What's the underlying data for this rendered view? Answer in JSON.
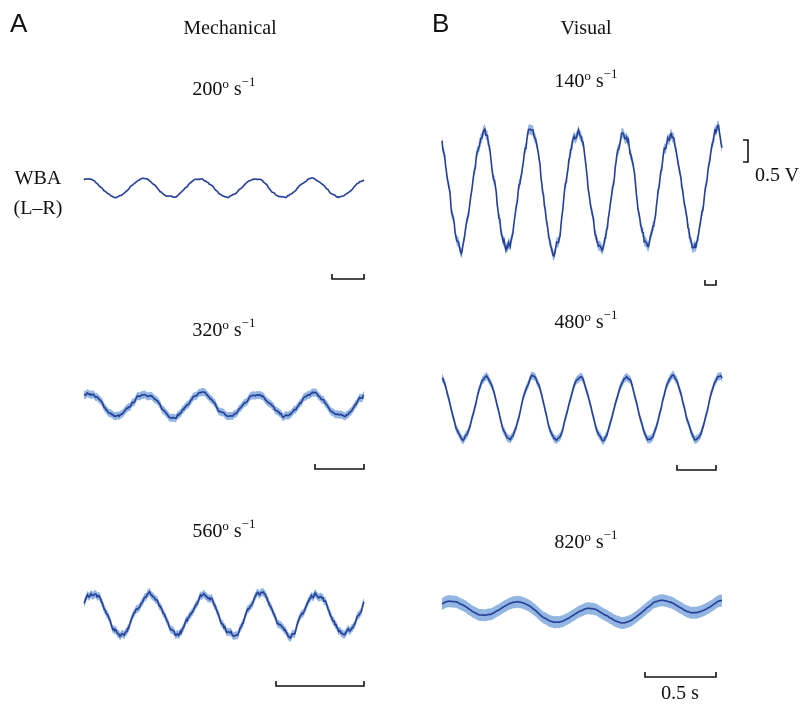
{
  "colors": {
    "trace": "#253f96",
    "band": "#7fa8dc",
    "ink": "#111111"
  },
  "panels": {
    "a": {
      "letter": "A",
      "heading": "Mechanical"
    },
    "b": {
      "letter": "B",
      "heading": "Visual"
    }
  },
  "ylabel": {
    "line1": "WBA",
    "line2": "(L–R)"
  },
  "scalebars": {
    "voltage": "0.5 V",
    "time": "0.5 s"
  },
  "chart_data": [
    {
      "type": "line",
      "panel": "A",
      "title_value": "200",
      "title_unit": "s",
      "title_exponent": "−1",
      "cycles": 5,
      "amplitude_v": 0.21,
      "offset_v": 0.0,
      "noise": 0.35,
      "band": false,
      "timebar_s": 0.5
    },
    {
      "type": "line",
      "panel": "A",
      "title_value": "320",
      "title_unit": "s",
      "title_exponent": "−1",
      "cycles": 5,
      "amplitude_v": 0.26,
      "offset_v": 0.0,
      "noise": 0.55,
      "band": true,
      "timebar_s": 0.5
    },
    {
      "type": "line",
      "panel": "A",
      "title_value": "560",
      "title_unit": "s",
      "title_exponent": "−1",
      "cycles": 5,
      "amplitude_v": 0.46,
      "offset_v": 0.0,
      "noise": 0.55,
      "band": true,
      "timebar_s": 0.5
    },
    {
      "type": "line",
      "panel": "B",
      "title_value": "140",
      "title_unit": "s",
      "title_exponent": "−1",
      "cycles": 6,
      "amplitude_v": 1.3,
      "offset_v": 0.0,
      "noise": 0.45,
      "band": true,
      "timebar_s": 0.5
    },
    {
      "type": "line",
      "panel": "B",
      "title_value": "480",
      "title_unit": "s",
      "title_exponent": "−1",
      "cycles": 6,
      "amplitude_v": 0.71,
      "offset_v": 0.0,
      "noise": 0.2,
      "band": true,
      "timebar_s": 0.5
    },
    {
      "type": "line",
      "panel": "B",
      "title_value": "820",
      "title_unit": "s",
      "title_exponent": "−1",
      "cycles": 4,
      "amplitude_v": 0.26,
      "offset_v": 0.0,
      "noise": 0.15,
      "band": true,
      "timebar_s": 0.5
    }
  ]
}
